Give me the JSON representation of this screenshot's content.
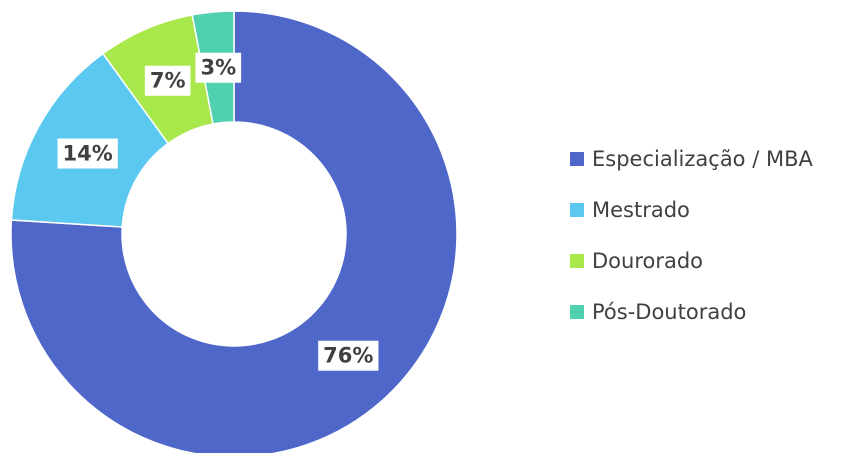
{
  "chart_data": {
    "type": "donut",
    "categories": [
      "Especialização / MBA",
      "Mestrado",
      "Dourorado",
      "Pós-Doutorado"
    ],
    "values": [
      76,
      14,
      7,
      3
    ],
    "value_labels": [
      "76%",
      "14%",
      "7%",
      "3%"
    ],
    "colors": [
      "#4f67c8",
      "#5bc8f0",
      "#a9e84a",
      "#4fd1b0"
    ],
    "legend": "right"
  }
}
